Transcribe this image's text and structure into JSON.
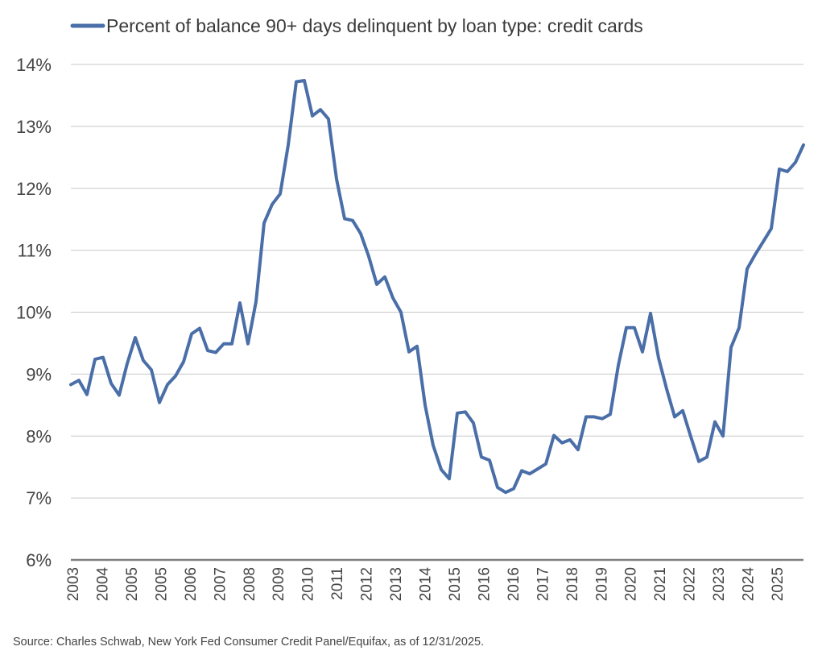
{
  "chart_data": {
    "type": "line",
    "legend_position": "top-left",
    "grid": true,
    "ylim": [
      6,
      14
    ],
    "yticks": [
      "6%",
      "7%",
      "8%",
      "9%",
      "10%",
      "11%",
      "12%",
      "13%",
      "14%"
    ],
    "xticks": [
      "2003",
      "2004",
      "2005",
      "2005",
      "2006",
      "2007",
      "2008",
      "2009",
      "2010",
      "2011",
      "2012",
      "2013",
      "2014",
      "2015",
      "2016",
      "2016",
      "2017",
      "2018",
      "2019",
      "2020",
      "2021",
      "2022",
      "2023",
      "2024",
      "2025"
    ],
    "series": [
      {
        "name": "Percent of balance 90+ days delinquent by loan type: credit cards",
        "color": "#4a6ea8",
        "values": [
          8.83,
          8.9,
          8.67,
          9.24,
          9.27,
          8.85,
          8.66,
          9.17,
          9.59,
          9.22,
          9.07,
          8.54,
          8.83,
          8.97,
          9.2,
          9.65,
          9.74,
          9.38,
          9.35,
          9.49,
          9.49,
          10.15,
          9.49,
          10.17,
          11.44,
          11.74,
          11.91,
          12.7,
          13.72,
          13.74,
          13.17,
          13.27,
          13.12,
          12.15,
          11.51,
          11.48,
          11.27,
          10.9,
          10.45,
          10.57,
          10.23,
          10.0,
          9.36,
          9.45,
          8.5,
          7.85,
          7.46,
          7.31,
          8.37,
          8.39,
          8.21,
          7.66,
          7.61,
          7.17,
          7.09,
          7.15,
          7.44,
          7.39,
          7.47,
          7.55,
          8.01,
          7.89,
          7.94,
          7.78,
          8.31,
          8.31,
          8.28,
          8.35,
          9.14,
          9.75,
          9.75,
          9.36,
          9.98,
          9.26,
          8.76,
          8.31,
          8.41,
          7.99,
          7.59,
          7.66,
          8.23,
          8.0,
          9.43,
          9.75,
          10.7,
          10.93,
          11.14,
          11.35,
          12.31,
          12.27,
          12.42,
          12.7
        ]
      }
    ]
  },
  "source_note": "Source: Charles Schwab, New York Fed Consumer Credit Panel/Equifax, as of 12/31/2025."
}
